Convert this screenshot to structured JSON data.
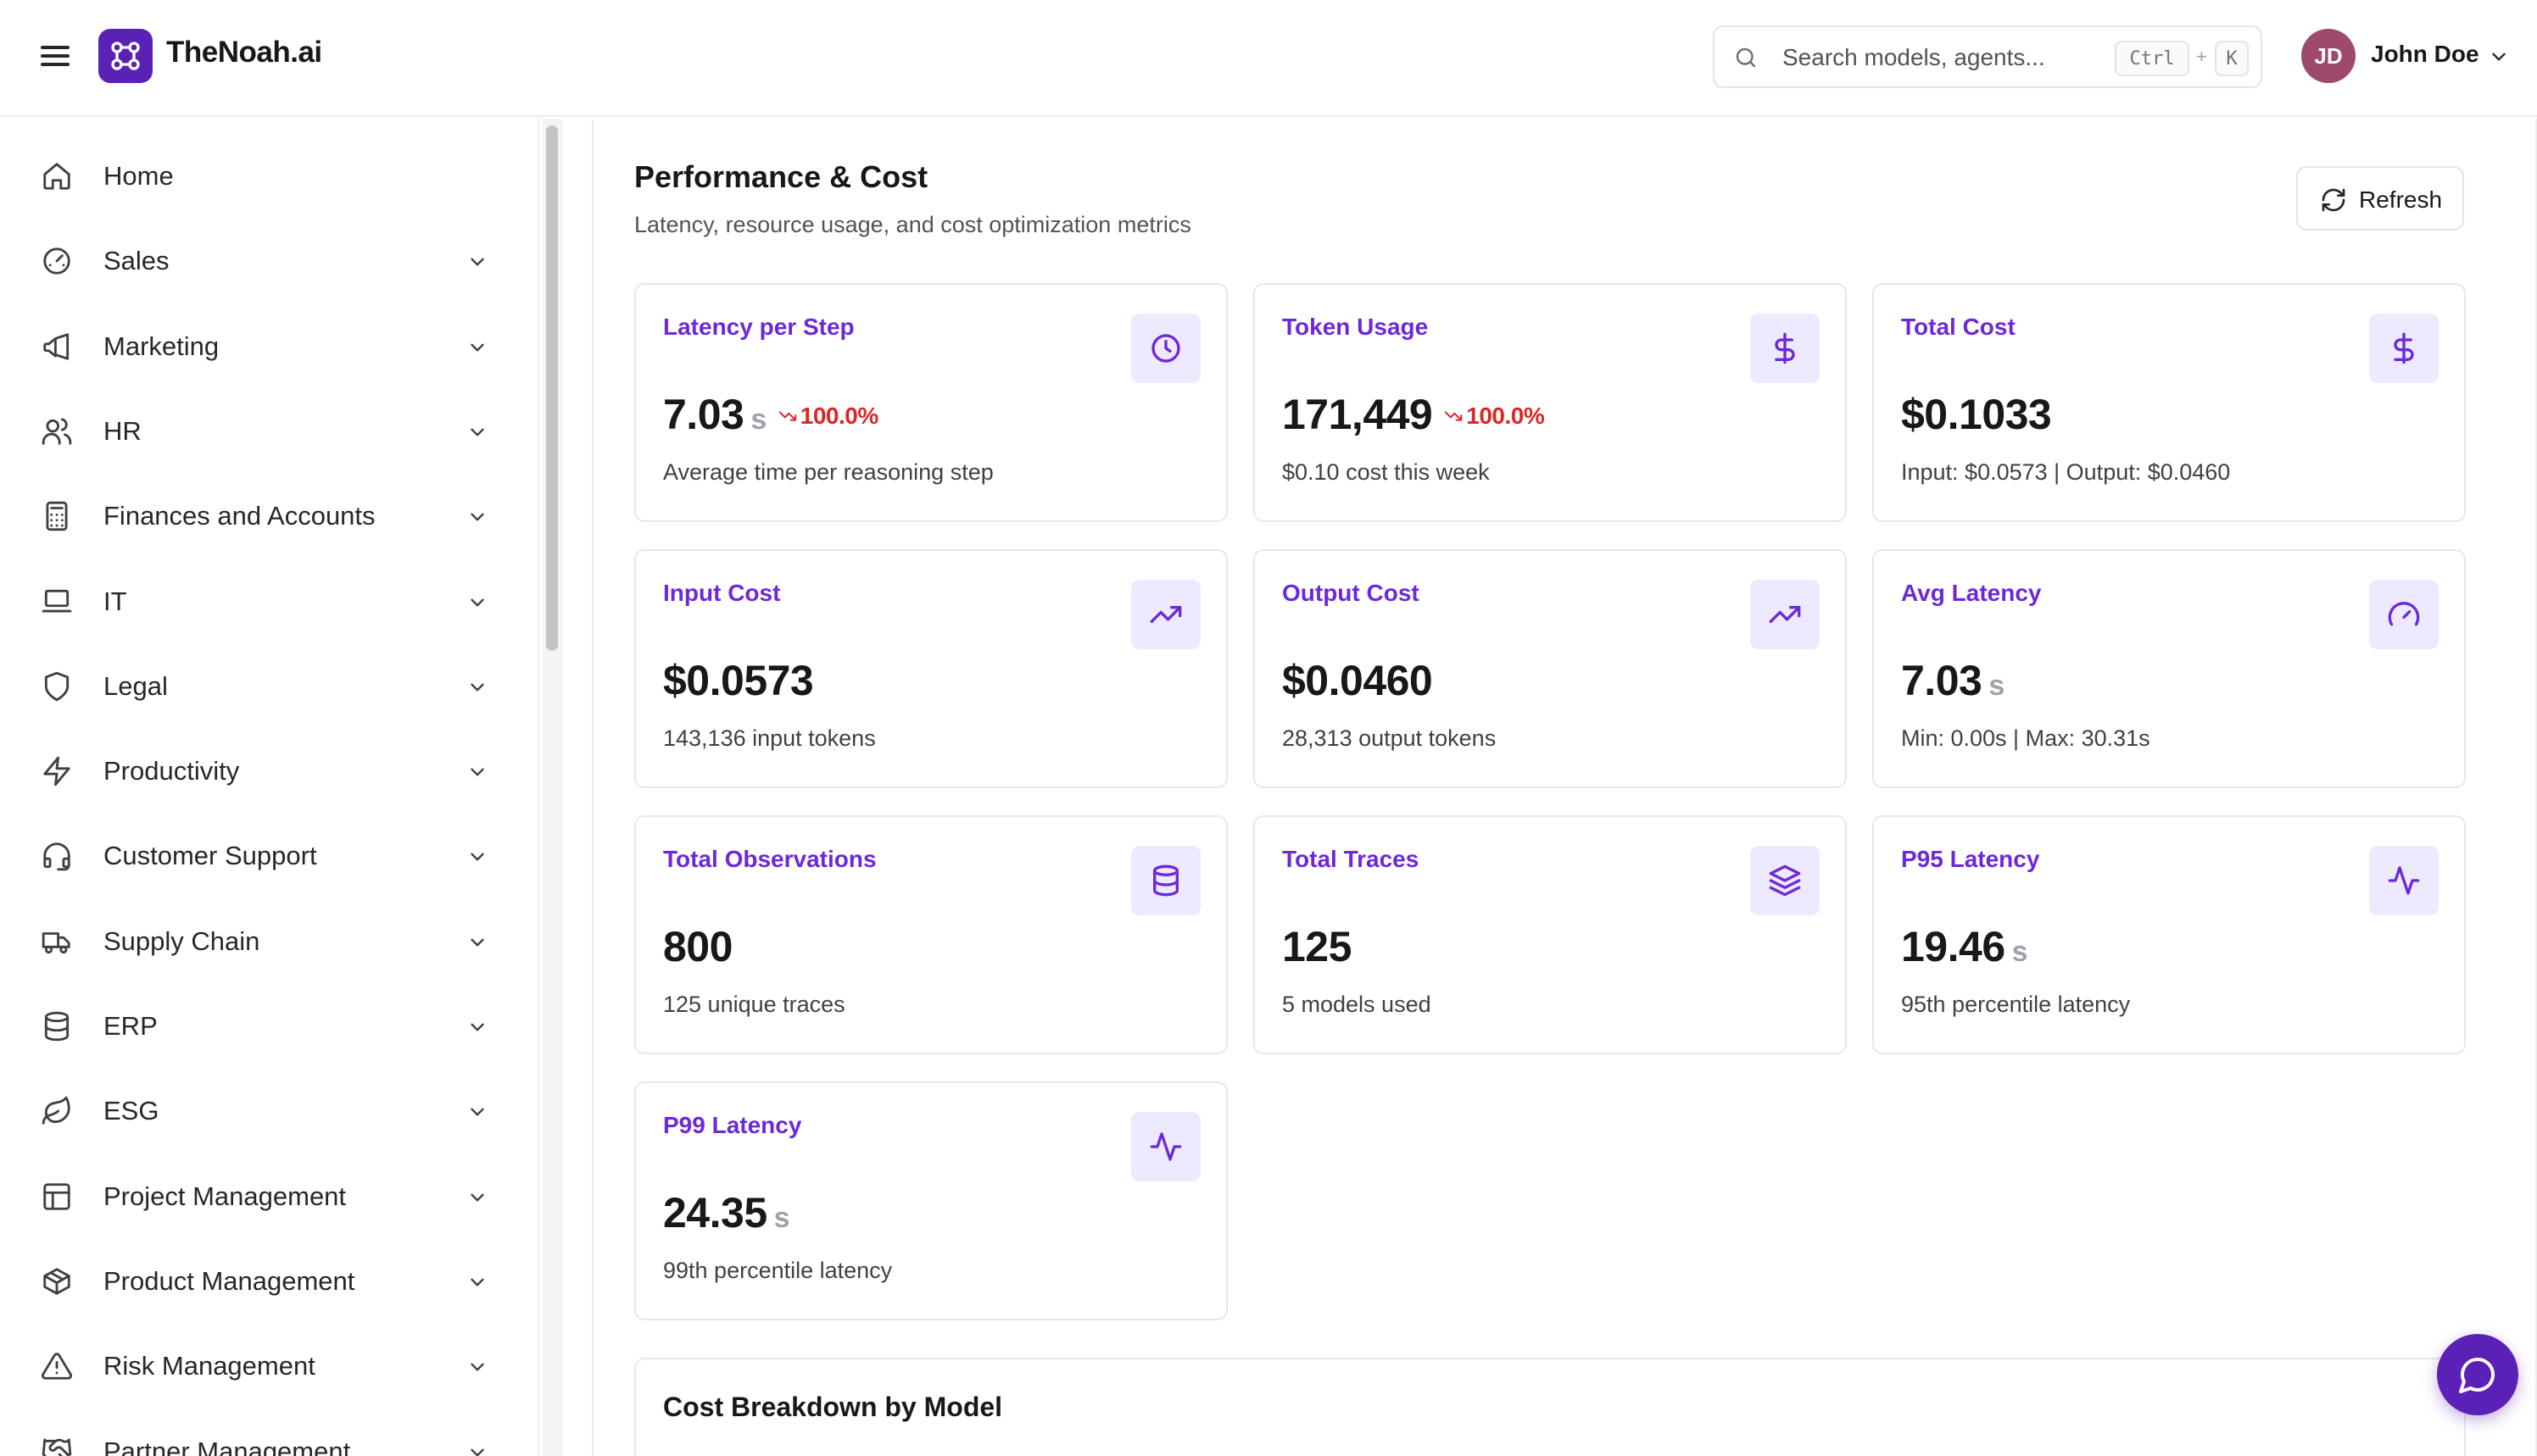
{
  "header": {
    "brand": "TheNoah.ai",
    "search_placeholder": "Search models, agents...",
    "shortcut_ctrl": "Ctrl",
    "shortcut_plus": "+",
    "shortcut_key": "K",
    "user_initials": "JD",
    "user_name": "John Doe"
  },
  "sidebar": {
    "items": [
      {
        "label": "Home",
        "icon": "home-icon",
        "expandable": false
      },
      {
        "label": "Sales",
        "icon": "gauge-icon",
        "expandable": true
      },
      {
        "label": "Marketing",
        "icon": "megaphone-icon",
        "expandable": true
      },
      {
        "label": "HR",
        "icon": "users-icon",
        "expandable": true
      },
      {
        "label": "Finances and Accounts",
        "icon": "calculator-icon",
        "expandable": true
      },
      {
        "label": "IT",
        "icon": "laptop-icon",
        "expandable": true
      },
      {
        "label": "Legal",
        "icon": "shield-icon",
        "expandable": true
      },
      {
        "label": "Productivity",
        "icon": "zap-icon",
        "expandable": true
      },
      {
        "label": "Customer Support",
        "icon": "headset-icon",
        "expandable": true
      },
      {
        "label": "Supply Chain",
        "icon": "truck-icon",
        "expandable": true
      },
      {
        "label": "ERP",
        "icon": "database-icon",
        "expandable": true
      },
      {
        "label": "ESG",
        "icon": "leaf-icon",
        "expandable": true
      },
      {
        "label": "Project Management",
        "icon": "layout-icon",
        "expandable": true
      },
      {
        "label": "Product Management",
        "icon": "package-icon",
        "expandable": true
      },
      {
        "label": "Risk Management",
        "icon": "alert-triangle-icon",
        "expandable": true
      },
      {
        "label": "Partner Management",
        "icon": "handshake-icon",
        "expandable": true
      }
    ]
  },
  "main": {
    "title": "Performance & Cost",
    "subtitle": "Latency, resource usage, and cost optimization metrics",
    "refresh_label": "Refresh",
    "cards": [
      {
        "title": "Latency per Step",
        "value": "7.03",
        "unit": "s",
        "trend": "100.0%",
        "desc": "Average time per reasoning step",
        "icon": "clock-icon"
      },
      {
        "title": "Token Usage",
        "value": "171,449",
        "unit": "",
        "trend": "100.0%",
        "desc": "$0.10 cost this week",
        "icon": "dollar-icon"
      },
      {
        "title": "Total Cost",
        "value": "$0.1033",
        "unit": "",
        "trend": "",
        "desc": "Input: $0.0573 | Output: $0.0460",
        "icon": "dollar-icon"
      },
      {
        "title": "Input Cost",
        "value": "$0.0573",
        "unit": "",
        "trend": "",
        "desc": "143,136 input tokens",
        "icon": "trending-up-icon"
      },
      {
        "title": "Output Cost",
        "value": "$0.0460",
        "unit": "",
        "trend": "",
        "desc": "28,313 output tokens",
        "icon": "trending-up-icon"
      },
      {
        "title": "Avg Latency",
        "value": "7.03",
        "unit": "s",
        "trend": "",
        "desc": "Min: 0.00s | Max: 30.31s",
        "icon": "gauge-icon"
      },
      {
        "title": "Total Observations",
        "value": "800",
        "unit": "",
        "trend": "",
        "desc": "125 unique traces",
        "icon": "database-icon"
      },
      {
        "title": "Total Traces",
        "value": "125",
        "unit": "",
        "trend": "",
        "desc": "5 models used",
        "icon": "layers-icon"
      },
      {
        "title": "P95 Latency",
        "value": "19.46",
        "unit": "s",
        "trend": "",
        "desc": "95th percentile latency",
        "icon": "activity-icon"
      },
      {
        "title": "P99 Latency",
        "value": "24.35",
        "unit": "s",
        "trend": "",
        "desc": "99th percentile latency",
        "icon": "activity-icon"
      }
    ],
    "breakdown_title": "Cost Breakdown by Model"
  },
  "colors": {
    "brand": "#5b21b6",
    "accent": "#6d28d9",
    "icon_bg": "#ede9fe",
    "trend_down": "#dc2626",
    "unit_gray": "#a1a1aa"
  }
}
